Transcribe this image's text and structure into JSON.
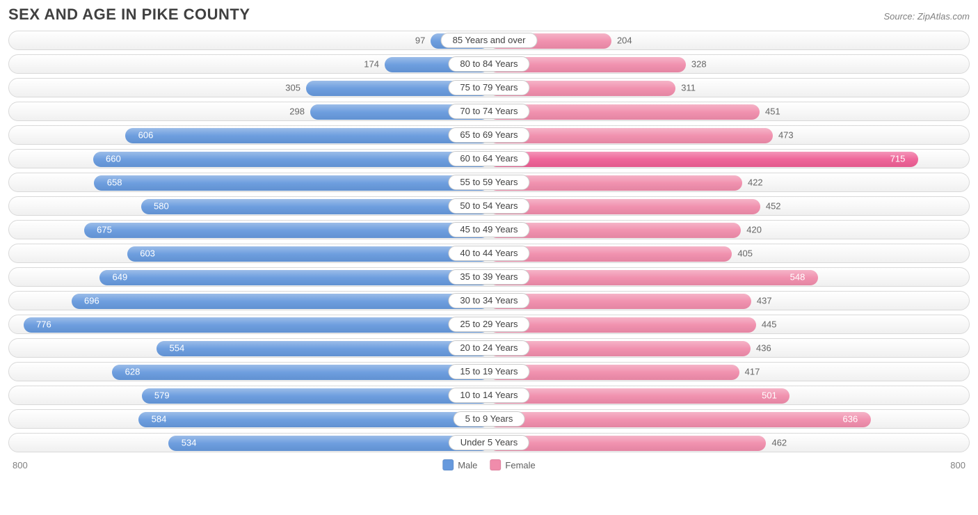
{
  "title": "SEX AND AGE IN PIKE COUNTY",
  "source": "Source: ZipAtlas.com",
  "chart": {
    "type": "bidirectional-bar",
    "axis_max": 800,
    "axis_label_left": "800",
    "axis_label_right": "800",
    "male_color": "#6699dd",
    "female_color": "#f08cab",
    "female_highlight_color": "#ee5e94",
    "track_border_color": "#d9d9d9",
    "track_bg_top": "#ffffff",
    "track_bg_bottom": "#f0f0f0",
    "value_text_color": "#666666",
    "value_inside_color": "#ffffff",
    "label_fontsize": 13,
    "title_fontsize": 22,
    "legend": [
      {
        "label": "Male",
        "color": "#6699dd"
      },
      {
        "label": "Female",
        "color": "#f08cab"
      }
    ],
    "rows": [
      {
        "label": "85 Years and over",
        "male": 97,
        "female": 204,
        "male_inside": false,
        "female_inside": false,
        "female_highlight": false
      },
      {
        "label": "80 to 84 Years",
        "male": 174,
        "female": 328,
        "male_inside": false,
        "female_inside": false,
        "female_highlight": false
      },
      {
        "label": "75 to 79 Years",
        "male": 305,
        "female": 311,
        "male_inside": false,
        "female_inside": false,
        "female_highlight": false
      },
      {
        "label": "70 to 74 Years",
        "male": 298,
        "female": 451,
        "male_inside": false,
        "female_inside": false,
        "female_highlight": false
      },
      {
        "label": "65 to 69 Years",
        "male": 606,
        "female": 473,
        "male_inside": true,
        "female_inside": false,
        "female_highlight": false
      },
      {
        "label": "60 to 64 Years",
        "male": 660,
        "female": 715,
        "male_inside": true,
        "female_inside": true,
        "female_highlight": true
      },
      {
        "label": "55 to 59 Years",
        "male": 658,
        "female": 422,
        "male_inside": true,
        "female_inside": false,
        "female_highlight": false
      },
      {
        "label": "50 to 54 Years",
        "male": 580,
        "female": 452,
        "male_inside": true,
        "female_inside": false,
        "female_highlight": false
      },
      {
        "label": "45 to 49 Years",
        "male": 675,
        "female": 420,
        "male_inside": true,
        "female_inside": false,
        "female_highlight": false
      },
      {
        "label": "40 to 44 Years",
        "male": 603,
        "female": 405,
        "male_inside": true,
        "female_inside": false,
        "female_highlight": false
      },
      {
        "label": "35 to 39 Years",
        "male": 649,
        "female": 548,
        "male_inside": true,
        "female_inside": true,
        "female_highlight": false
      },
      {
        "label": "30 to 34 Years",
        "male": 696,
        "female": 437,
        "male_inside": true,
        "female_inside": false,
        "female_highlight": false
      },
      {
        "label": "25 to 29 Years",
        "male": 776,
        "female": 445,
        "male_inside": true,
        "female_inside": false,
        "female_highlight": false
      },
      {
        "label": "20 to 24 Years",
        "male": 554,
        "female": 436,
        "male_inside": true,
        "female_inside": false,
        "female_highlight": false
      },
      {
        "label": "15 to 19 Years",
        "male": 628,
        "female": 417,
        "male_inside": true,
        "female_inside": false,
        "female_highlight": false
      },
      {
        "label": "10 to 14 Years",
        "male": 579,
        "female": 501,
        "male_inside": true,
        "female_inside": true,
        "female_highlight": false
      },
      {
        "label": "5 to 9 Years",
        "male": 584,
        "female": 636,
        "male_inside": true,
        "female_inside": true,
        "female_highlight": false
      },
      {
        "label": "Under 5 Years",
        "male": 534,
        "female": 462,
        "male_inside": true,
        "female_inside": false,
        "female_highlight": false
      }
    ]
  }
}
